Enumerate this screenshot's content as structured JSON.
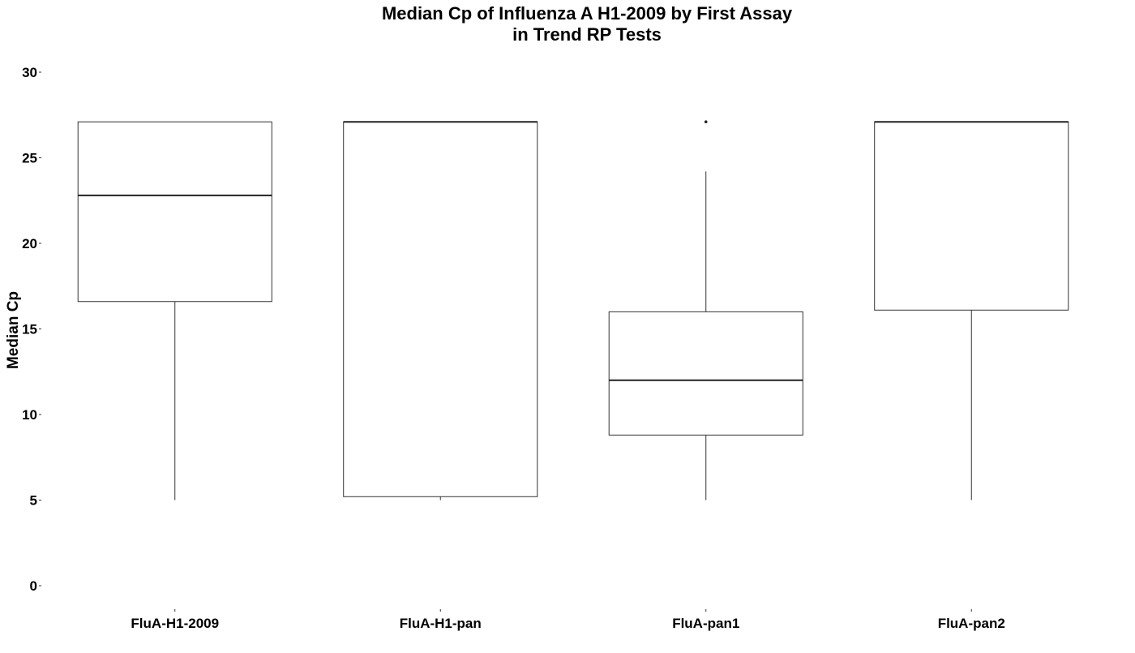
{
  "chart_data": {
    "type": "boxplot",
    "title": "Median Cp of Influenza A H1-2009 by First Assay",
    "subtitle": "in Trend RP Tests",
    "xlabel": "",
    "ylabel": "Median Cp",
    "ylim": [
      0,
      30
    ],
    "yticks": [
      0,
      5,
      10,
      15,
      20,
      25,
      30
    ],
    "grid": false,
    "categories": [
      "FluA-H1-2009",
      "FluA-H1-pan",
      "FluA-pan1",
      "FluA-pan2"
    ],
    "boxes": [
      {
        "category": "FluA-H1-2009",
        "whisker_low": 5.0,
        "q1": 16.6,
        "median": 22.8,
        "q3": 27.1,
        "whisker_high": 27.1,
        "outliers": []
      },
      {
        "category": "FluA-H1-pan",
        "whisker_low": 5.0,
        "q1": 5.2,
        "median": 27.1,
        "q3": 27.1,
        "whisker_high": 27.1,
        "outliers": []
      },
      {
        "category": "FluA-pan1",
        "whisker_low": 5.0,
        "q1": 8.8,
        "median": 12.0,
        "q3": 16.0,
        "whisker_high": 24.2,
        "outliers": [
          27.1
        ]
      },
      {
        "category": "FluA-pan2",
        "whisker_low": 5.0,
        "q1": 16.1,
        "median": 27.1,
        "q3": 27.1,
        "whisker_high": 27.1,
        "outliers": []
      }
    ],
    "colors": {
      "box_fill": "#ffffff",
      "box_stroke": "#333333",
      "text": "#000000",
      "background": "#ffffff"
    }
  }
}
